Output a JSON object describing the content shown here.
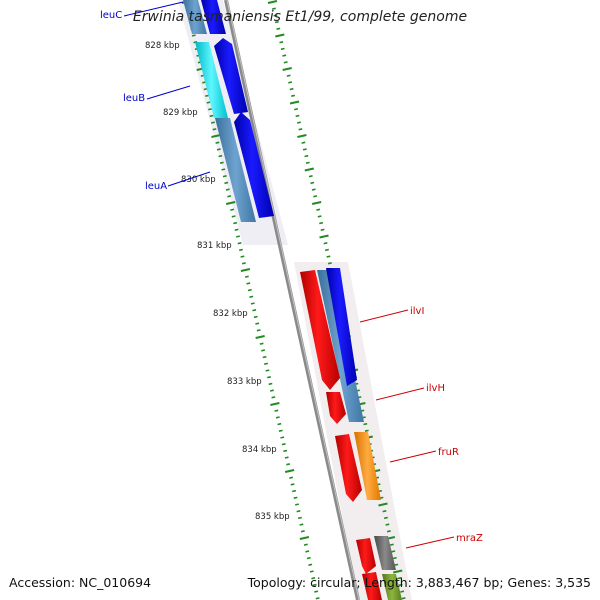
{
  "title": "Erwinia tasmaniensis Et1/99, complete genome",
  "accession_text": "Accession: NC_010694",
  "summary_text": "Topology: circular; Length: 3,883,467 bp; Genes: 3,535",
  "scale": {
    "tick_labels": [
      "828 kbp",
      "829 kbp",
      "830 kbp",
      "831 kbp",
      "832 kbp",
      "833 kbp",
      "834 kbp",
      "835 kbp"
    ]
  },
  "genes": [
    {
      "name": "leuC",
      "strand": "reverse",
      "color": "#0000cc"
    },
    {
      "name": "leuB",
      "strand": "reverse",
      "color": "#0000cc"
    },
    {
      "name": "leuA",
      "strand": "reverse",
      "color": "#0000cc"
    },
    {
      "name": "ilvI",
      "strand": "forward",
      "color": "#cc0000"
    },
    {
      "name": "ilvH",
      "strand": "forward",
      "color": "#cc0000"
    },
    {
      "name": "fruR",
      "strand": "forward",
      "color": "#cc0000"
    },
    {
      "name": "mraZ",
      "strand": "forward",
      "color": "#cc0000"
    }
  ],
  "colors": {
    "reverse_cds": "#0000ee",
    "forward_cds": "#ee0000",
    "gene_track": "#4682b4",
    "gene_highlight": "#00e5ee",
    "orange_feature": "#ff8c00",
    "gray_feature": "#666666",
    "olive_feature": "#6b8e23",
    "backbone": "#808080",
    "tick": "#228b22"
  }
}
